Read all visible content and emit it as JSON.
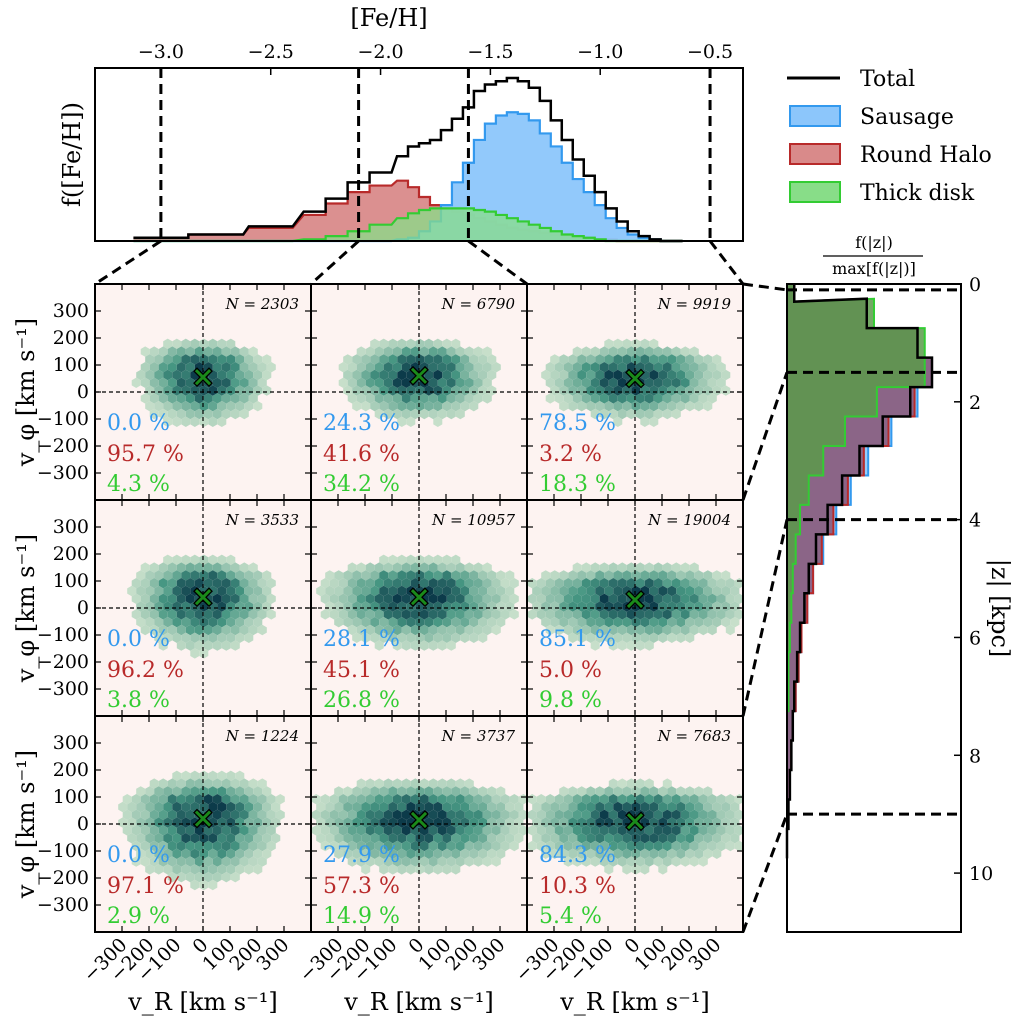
{
  "colors": {
    "sausage": "#3399ee",
    "sausage_fill": "#8cc6fb",
    "round_halo": "#b82a2a",
    "round_halo_fill": "#d98a8a",
    "thick_disk": "#33cc33",
    "thick_disk_fill": "#88dd88",
    "panel_bg": "#fdf3f1",
    "hex_dark": "#0c3b4a",
    "hex_light": "#dcebd6",
    "marker": "#1a8a1a"
  },
  "legend": {
    "total": "Total",
    "sausage": "Sausage",
    "round_halo": "Round Halo",
    "thick_disk": "Thick disk"
  },
  "chart_data": [
    {
      "type": "area",
      "xlabel": "[Fe/H]",
      "ylabel": "f([Fe/H])",
      "xlim": [
        -3.3,
        -0.35
      ],
      "xticks": [
        -3.0,
        -2.5,
        -2.0,
        -1.5,
        -1.0,
        -0.5
      ],
      "xtick_labels": [
        "−3.0",
        "−2.5",
        "−2.0",
        "−1.5",
        "−1.0",
        "−0.5"
      ],
      "bin_edges": [
        -3.3,
        -0.35
      ],
      "bins_per": 0.05,
      "bin_boundaries": [
        -3.0,
        -2.1,
        -1.6,
        -0.5
      ],
      "x_centers": [
        -3.0,
        -2.75,
        -2.5,
        -2.3,
        -2.2,
        -2.1,
        -2.0,
        -1.9,
        -1.85,
        -1.8,
        -1.75,
        -1.7,
        -1.65,
        -1.6,
        -1.55,
        -1.5,
        -1.45,
        -1.4,
        -1.35,
        -1.3,
        -1.25,
        -1.2,
        -1.15,
        -1.1,
        -1.05,
        -1.0,
        -0.95,
        -0.9,
        -0.85,
        -0.8,
        -0.75,
        -0.7,
        -0.65
      ],
      "series": [
        {
          "name": "Total",
          "values": [
            0.02,
            0.04,
            0.09,
            0.18,
            0.26,
            0.36,
            0.42,
            0.52,
            0.58,
            0.6,
            0.62,
            0.68,
            0.75,
            0.82,
            0.92,
            0.96,
            0.98,
            1.0,
            0.98,
            0.94,
            0.86,
            0.74,
            0.62,
            0.5,
            0.4,
            0.3,
            0.2,
            0.12,
            0.06,
            0.03,
            0.01,
            0.0,
            0.0
          ]
        },
        {
          "name": "Sausage",
          "values": [
            0.0,
            0.0,
            0.0,
            0.0,
            0.0,
            0.0,
            0.0,
            0.01,
            0.02,
            0.06,
            0.12,
            0.22,
            0.36,
            0.48,
            0.62,
            0.72,
            0.77,
            0.79,
            0.78,
            0.74,
            0.66,
            0.58,
            0.48,
            0.38,
            0.3,
            0.22,
            0.14,
            0.08,
            0.04,
            0.02,
            0.01,
            0.0,
            0.0
          ]
        },
        {
          "name": "Round Halo",
          "values": [
            0.02,
            0.04,
            0.08,
            0.16,
            0.23,
            0.3,
            0.34,
            0.37,
            0.33,
            0.27,
            0.22,
            0.2,
            0.18,
            0.16,
            0.14,
            0.12,
            0.1,
            0.08,
            0.07,
            0.06,
            0.05,
            0.04,
            0.03,
            0.02,
            0.02,
            0.01,
            0.01,
            0.0,
            0.0,
            0.0,
            0.0,
            0.0,
            0.0
          ]
        },
        {
          "name": "Thick disk",
          "values": [
            0.0,
            0.0,
            0.0,
            0.01,
            0.03,
            0.06,
            0.1,
            0.14,
            0.17,
            0.19,
            0.2,
            0.2,
            0.2,
            0.2,
            0.19,
            0.18,
            0.16,
            0.14,
            0.12,
            0.1,
            0.08,
            0.06,
            0.04,
            0.03,
            0.02,
            0.01,
            0.0,
            0.0,
            0.0,
            0.0,
            0.0,
            0.0,
            0.0
          ]
        }
      ]
    },
    {
      "type": "heatmap",
      "xlabel": "v_R [km s⁻¹]",
      "ylabel": "v_φ [km s⁻¹]",
      "xlim": [
        -400,
        400
      ],
      "ylim": [
        -400,
        400
      ],
      "ticks": [
        -300,
        -200,
        -100,
        0,
        100,
        200,
        300
      ],
      "tick_labels": [
        "−300",
        "−200",
        "−100",
        "0",
        "100",
        "200",
        "300"
      ],
      "panels": [
        {
          "row": 0,
          "col": 0,
          "N": "N = 2303",
          "sausage_pct": "0.0 %",
          "halo_pct": "95.7 %",
          "disk_pct": "4.3 %",
          "center": [
            0,
            55
          ],
          "spread": [
            110,
            80
          ],
          "rot": 60
        },
        {
          "row": 0,
          "col": 1,
          "N": "N = 6790",
          "sausage_pct": "24.3 %",
          "halo_pct": "41.6 %",
          "disk_pct": "34.2 %",
          "center": [
            0,
            60
          ],
          "spread": [
            130,
            75
          ],
          "rot": 80
        },
        {
          "row": 0,
          "col": 2,
          "N": "N = 9919",
          "sausage_pct": "78.5 %",
          "halo_pct": "3.2 %",
          "disk_pct": "18.3 %",
          "center": [
            0,
            50
          ],
          "spread": [
            150,
            70
          ],
          "rot": 70
        },
        {
          "row": 1,
          "col": 0,
          "N": "N = 3533",
          "sausage_pct": "0.0 %",
          "halo_pct": "96.2 %",
          "disk_pct": "3.8 %",
          "center": [
            0,
            40
          ],
          "spread": [
            120,
            90
          ],
          "rot": 50
        },
        {
          "row": 1,
          "col": 1,
          "N": "N = 10957",
          "sausage_pct": "28.1 %",
          "halo_pct": "45.1 %",
          "disk_pct": "26.8 %",
          "center": [
            0,
            40
          ],
          "spread": [
            160,
            85
          ],
          "rot": 55
        },
        {
          "row": 1,
          "col": 2,
          "N": "N = 19004",
          "sausage_pct": "85.1 %",
          "halo_pct": "5.0 %",
          "disk_pct": "9.8 %",
          "center": [
            0,
            30
          ],
          "spread": [
            190,
            75
          ],
          "rot": 45
        },
        {
          "row": 2,
          "col": 0,
          "N": "N = 1224",
          "sausage_pct": "0.0 %",
          "halo_pct": "97.1 %",
          "disk_pct": "2.9 %",
          "center": [
            0,
            20
          ],
          "spread": [
            130,
            110
          ],
          "rot": 25
        },
        {
          "row": 2,
          "col": 1,
          "N": "N = 3737",
          "sausage_pct": "27.9 %",
          "halo_pct": "57.3 %",
          "disk_pct": "14.9 %",
          "center": [
            0,
            15
          ],
          "spread": [
            180,
            90
          ],
          "rot": 30
        },
        {
          "row": 2,
          "col": 2,
          "N": "N = 7683",
          "sausage_pct": "84.3 %",
          "halo_pct": "10.3 %",
          "disk_pct": "5.4 %",
          "center": [
            0,
            10
          ],
          "spread": [
            190,
            80
          ],
          "rot": 25
        }
      ]
    },
    {
      "type": "area",
      "title": "f(|z|) / max[f(|z|)]",
      "ylabel": "|z| [kpc]",
      "ylim": [
        0,
        11
      ],
      "yticks": [
        0,
        2,
        4,
        6,
        8,
        10
      ],
      "z_boundaries": [
        0.1,
        1.5,
        4.0,
        9.0
      ],
      "z": [
        0.1,
        0.5,
        1.0,
        1.5,
        2.0,
        2.5,
        3.0,
        3.5,
        4.0,
        4.5,
        5.0,
        5.5,
        6.0,
        6.5,
        7.0,
        7.5,
        8.0,
        8.5,
        9.0,
        9.5
      ],
      "series": [
        {
          "name": "Total",
          "values": [
            0.05,
            0.55,
            0.9,
            1.0,
            0.85,
            0.66,
            0.5,
            0.38,
            0.28,
            0.2,
            0.15,
            0.12,
            0.09,
            0.07,
            0.05,
            0.04,
            0.03,
            0.02,
            0.01,
            0.0
          ]
        },
        {
          "name": "Sausage",
          "values": [
            0.05,
            0.55,
            0.9,
            1.0,
            0.9,
            0.72,
            0.56,
            0.44,
            0.34,
            0.25,
            0.18,
            0.14,
            0.1,
            0.08,
            0.06,
            0.04,
            0.03,
            0.02,
            0.01,
            0.0
          ]
        },
        {
          "name": "Round Halo",
          "values": [
            0.05,
            0.55,
            0.9,
            1.0,
            0.88,
            0.7,
            0.53,
            0.42,
            0.32,
            0.24,
            0.18,
            0.14,
            0.1,
            0.08,
            0.06,
            0.04,
            0.03,
            0.02,
            0.01,
            0.0
          ]
        },
        {
          "name": "Thick disk",
          "values": [
            0.05,
            0.6,
            0.95,
            0.95,
            0.62,
            0.4,
            0.25,
            0.15,
            0.09,
            0.06,
            0.04,
            0.03,
            0.02,
            0.01,
            0.01,
            0.0,
            0.0,
            0.0,
            0.0,
            0.0
          ]
        }
      ]
    }
  ]
}
